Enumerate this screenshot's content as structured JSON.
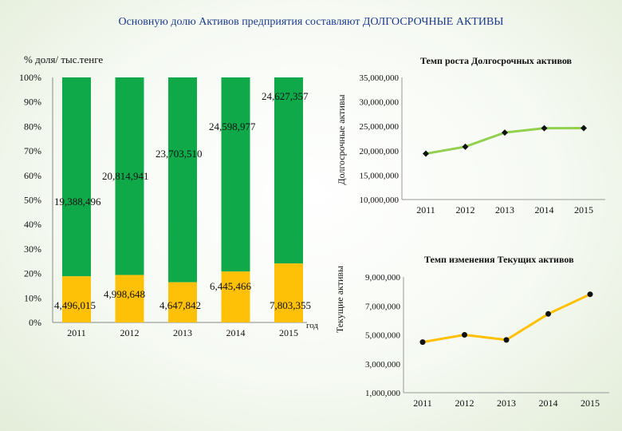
{
  "title": "Основную долю Активов предприятия составляют ДОЛГОСРОЧНЫЕ АКТИВЫ",
  "unit_label": "% доля/ тыс.тенге",
  "colors": {
    "long_term": "#10a94a",
    "current": "#ffc107",
    "line_long_term": "#92d050",
    "line_current": "#ffc000",
    "title_text": "#1b3a8a"
  },
  "chart_data": [
    {
      "type": "bar",
      "stacked": "percent",
      "categories": [
        "2011",
        "2012",
        "2013",
        "2014",
        "2015"
      ],
      "series": [
        {
          "name": "Текущие активы",
          "values": [
            4496015,
            4998648,
            4647842,
            6445466,
            7803355
          ],
          "labels": [
            "4,496,015",
            "4,998,648",
            "4,647,842",
            "6,445,466",
            "7,803,355"
          ]
        },
        {
          "name": "Долгосрочные активы",
          "values": [
            19388496,
            20814941,
            23703510,
            24598977,
            24627357
          ],
          "labels": [
            "19,388,496",
            "20,814,941",
            "23,703,510",
            "24,598,977",
            "24,627,357"
          ]
        }
      ],
      "xlabel": "год",
      "y_ticks": [
        "0%",
        "10%",
        "20%",
        "30%",
        "40%",
        "50%",
        "60%",
        "70%",
        "80%",
        "90%",
        "100%"
      ],
      "ylim": [
        0,
        100
      ],
      "grid": false
    },
    {
      "type": "line",
      "title": "Темп роста Долгосрочных активов",
      "ylabel": "Долгосрочные активы",
      "x": [
        "2011",
        "2012",
        "2013",
        "2014",
        "2015"
      ],
      "values": [
        19388496,
        20814941,
        23703510,
        24598977,
        24627357
      ],
      "ylim": [
        10000000,
        35000000
      ],
      "y_ticks": [
        "10,000,000",
        "15,000,000",
        "20,000,000",
        "25,000,000",
        "30,000,000",
        "35,000,000"
      ],
      "grid": false
    },
    {
      "type": "line",
      "title": "Темп изменения Текущих активов",
      "ylabel": "Текущие активы",
      "x": [
        "2011",
        "2012",
        "2013",
        "2014",
        "2015"
      ],
      "values": [
        4496015,
        4998648,
        4647842,
        6445466,
        7803355
      ],
      "ylim": [
        1000000,
        9000000
      ],
      "y_ticks": [
        "1,000,000",
        "3,000,000",
        "5,000,000",
        "7,000,000",
        "9,000,000"
      ],
      "grid": false
    }
  ]
}
